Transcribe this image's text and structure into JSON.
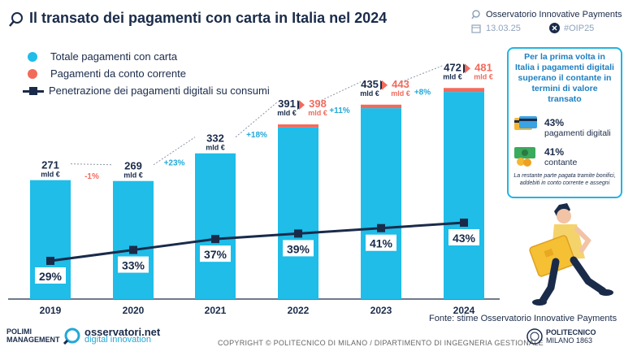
{
  "header": {
    "title": "Il transato dei pagamenti con carta in Italia nel 2024",
    "org": "Osservatorio Innovative Payments",
    "date": "13.03.25",
    "hashtag": "#OIP25"
  },
  "legend": {
    "cards": "Totale pagamenti con carta",
    "account": "Pagamenti da conto corrente",
    "penetration": "Penetrazione dei pagamenti digitali su consumi"
  },
  "colors": {
    "bar": "#1fbde8",
    "account": "#f26a5c",
    "line": "#1a2b4a",
    "growth_pos": "#22a8d8",
    "growth_neg": "#f26a5c"
  },
  "chart_data": {
    "type": "bar",
    "categories": [
      "2019",
      "2020",
      "2021",
      "2022",
      "2023",
      "2024"
    ],
    "series": [
      {
        "name": "Totale pagamenti con carta",
        "values": [
          271,
          269,
          332,
          391,
          435,
          472
        ],
        "unit": "mld €"
      },
      {
        "name": "Pagamenti da conto corrente",
        "values": [
          null,
          null,
          null,
          7,
          8,
          9
        ],
        "totals": [
          null,
          null,
          null,
          398,
          443,
          481
        ],
        "unit": "mld €"
      },
      {
        "name": "Penetrazione dei pagamenti digitali su consumi",
        "type": "line",
        "values": [
          29,
          33,
          37,
          39,
          41,
          43
        ],
        "unit": "%"
      }
    ],
    "value_labels": [
      "271",
      "269",
      "332",
      "391",
      "435",
      "472"
    ],
    "total_labels": [
      "398",
      "443",
      "481"
    ],
    "unit_label": "mld €",
    "growth_labels": [
      "-1%",
      "+23%",
      "+18%",
      "+11%",
      "+8%"
    ],
    "pct_labels": [
      "29%",
      "33%",
      "37%",
      "39%",
      "41%",
      "43%"
    ]
  },
  "callout": {
    "heading": "Per la prima volta in Italia i pagamenti digitali superano il contante in termini di valore transato",
    "digital_pct": "43%",
    "digital_label": "pagamenti digitali",
    "cash_pct": "41%",
    "cash_label": "contante",
    "note": "La restante parte pagata tramite bonifici, addebiti in conto corrente e assegni"
  },
  "footer": {
    "source": "Fonte: stime Osservatorio Innovative Payments",
    "logo_left_a": "POLIMI",
    "logo_left_b": "MANAGEMENT",
    "osservatori_a": "osservatori.net",
    "osservatori_b": "digital innovation",
    "copyright": "COPYRIGHT © POLITECNICO DI MILANO / DIPARTIMENTO DI INGEGNERIA GESTIONALE",
    "poli_a": "POLITECNICO",
    "poli_b": "MILANO 1863"
  }
}
